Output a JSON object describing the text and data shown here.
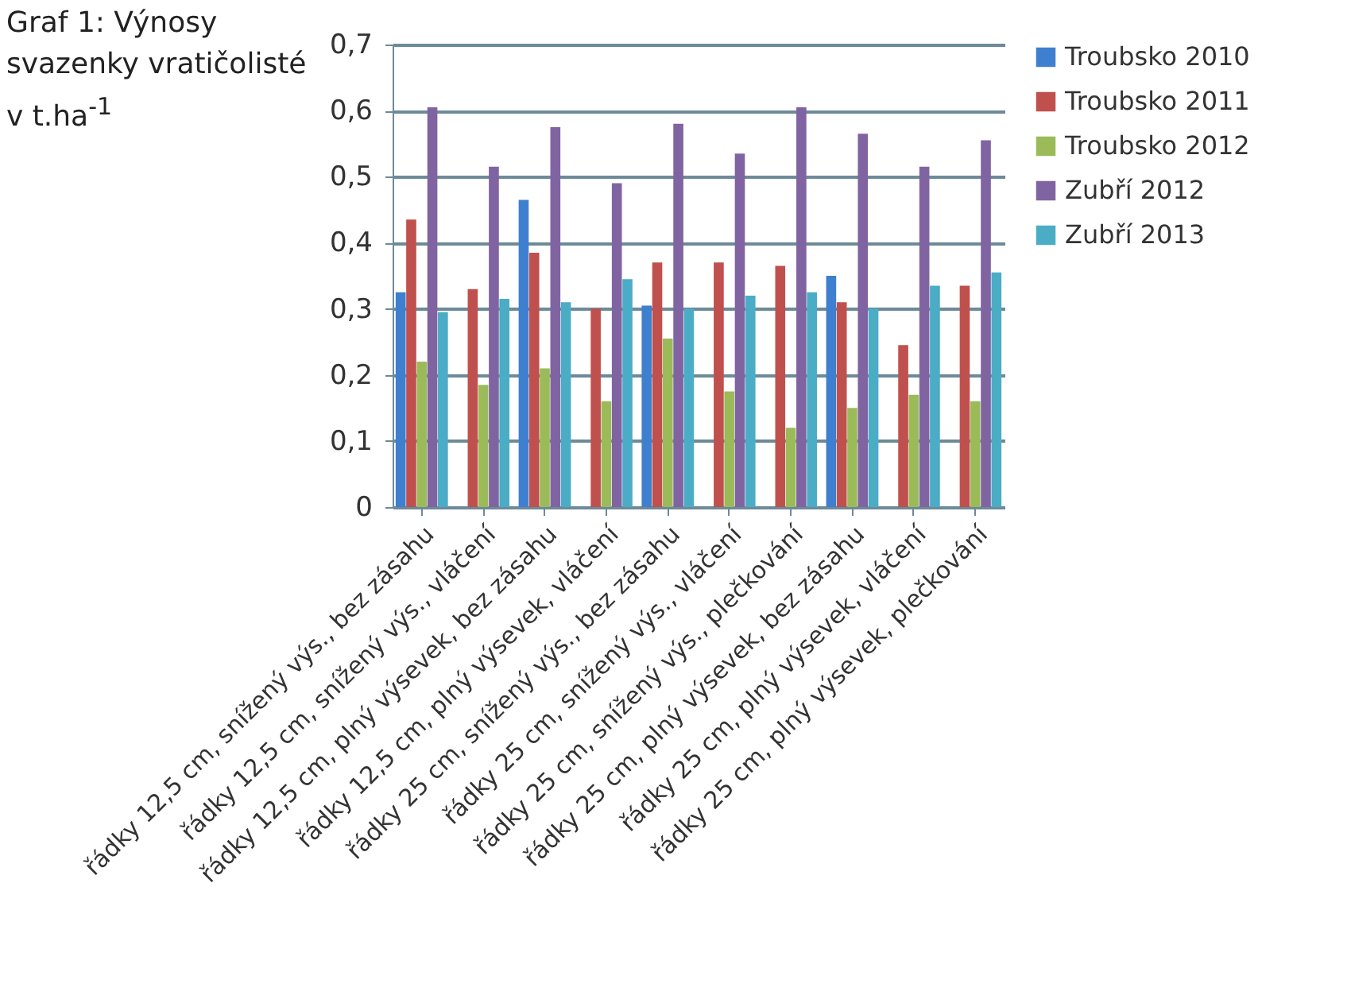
{
  "chart_data": {
    "type": "bar",
    "title": "Graf 1: Výnosy svazenky vratičolisté v t.ha$^{-1}$",
    "categories": [
      "řádky 12,5 cm, snížený výs., bez zásahu",
      "řádky 12,5 cm, snížený výs., vláčení",
      "řádky 12,5 cm, plný výsevek, bez zásahu",
      "řádky 12,5 cm, plný výsevek, vláčení",
      "řádky 25 cm, snížený výs., bez zásahu",
      "řádky 25 cm, snížený výs., vláčení",
      "řádky 25 cm, snížený výs., plečkování",
      "řádky 25 cm, plný výsevek, bez zásahu",
      "řádky 25 cm, plný výsevek, vláčení",
      "řádky 25 cm, plný výsevek, plečkování"
    ],
    "series": [
      {
        "name": "Troubsko 2010",
        "color": "#3f7fcf",
        "values": [
          0.325,
          null,
          0.465,
          null,
          0.305,
          null,
          null,
          0.35,
          null,
          null
        ]
      },
      {
        "name": "Troubsko 2011",
        "color": "#c0504d",
        "values": [
          0.435,
          0.33,
          0.385,
          0.3,
          0.37,
          0.37,
          0.365,
          0.31,
          0.245,
          0.335
        ]
      },
      {
        "name": "Troubsko 2012",
        "color": "#9bbb59",
        "values": [
          0.22,
          0.185,
          0.21,
          0.16,
          0.255,
          0.175,
          0.12,
          0.15,
          0.17,
          0.16
        ]
      },
      {
        "name": "Zubří 2012",
        "color": "#8064a2",
        "values": [
          0.605,
          0.515,
          0.575,
          0.49,
          0.58,
          0.535,
          0.605,
          0.565,
          0.515,
          0.555
        ]
      },
      {
        "name": "Zubří 2013",
        "color": "#4bacc6",
        "values": [
          0.295,
          0.315,
          0.31,
          0.345,
          0.3,
          0.32,
          0.325,
          0.3,
          0.335,
          0.355
        ]
      }
    ],
    "ylim": [
      0,
      0.7
    ],
    "yticks": [
      {
        "value": 0,
        "label": "0"
      },
      {
        "value": 0.1,
        "label": "0,1"
      },
      {
        "value": 0.2,
        "label": "0,2"
      },
      {
        "value": 0.3,
        "label": "0,3"
      },
      {
        "value": 0.4,
        "label": "0,4"
      },
      {
        "value": 0.5,
        "label": "0,5"
      },
      {
        "value": 0.6,
        "label": "0,6"
      },
      {
        "value": 0.7,
        "label": "0,7"
      }
    ],
    "grid": "y",
    "legend": "right"
  }
}
